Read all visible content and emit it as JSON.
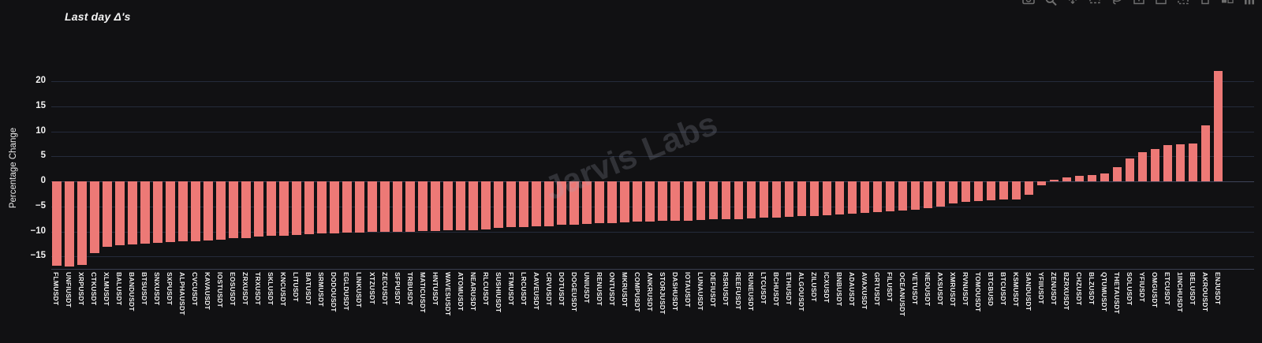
{
  "page": {
    "background": "#111113"
  },
  "watermark": "Jarvis Labs",
  "toolbar": {
    "icons": [
      "camera-icon",
      "zoom-icon",
      "pan-icon",
      "box-select-icon",
      "lasso-icon",
      "zoom-in-icon",
      "zoom-out-icon",
      "autoscale-icon",
      "reset-axes-icon",
      "toggle-hover-icon",
      "plotly-logo-icon"
    ]
  },
  "chart_data": {
    "type": "bar",
    "title": "Last day Δ's",
    "xlabel": "",
    "ylabel": "Percentage Change",
    "bar_color": "#ed7976",
    "grid": true,
    "ylim": [
      -17.6,
      23.0
    ],
    "ytick_labels": [
      "20",
      "15",
      "10",
      "5",
      "0",
      "−5",
      "−10",
      "−15"
    ],
    "ytick_values": [
      20,
      15,
      10,
      5,
      0,
      -5,
      -10,
      -15
    ],
    "categories": [
      "FLMUSDT",
      "UNFIUSDT",
      "XRPUSDT",
      "CTKUSDT",
      "XLMUSDT",
      "BALUSDT",
      "BANDUSDT",
      "BTSUSDT",
      "SNXUSDT",
      "SXPUSDT",
      "ALPHAUSDT",
      "CVCUSDT",
      "KAVAUSDT",
      "IOSTUSDT",
      "EOSUSDT",
      "ZRXUSDT",
      "TRXUSDT",
      "SKLUSDT",
      "KNCUSDT",
      "LITUSDT",
      "BATUSDT",
      "SRMUSDT",
      "DODOUSDT",
      "EGLDUSDT",
      "LINKUSDT",
      "XTZUSDT",
      "ZECUSDT",
      "SFPUSDT",
      "TRBUSDT",
      "MATICUSDT",
      "HNTUSDT",
      "WAVESUSDT",
      "ATOMUSDT",
      "NEARUSDT",
      "RLCUSDT",
      "SUSHIUSDT",
      "FTMUSDT",
      "LRCUSDT",
      "AAVEUSDT",
      "CRVUSDT",
      "DOTUSDT",
      "DOGEUSDT",
      "UNIUSDT",
      "RENUSDT",
      "ONTUSDT",
      "MKRUSDT",
      "COMPUSDT",
      "ANKRUSDT",
      "STORJUSDT",
      "DASHUSDT",
      "IOTAUSDT",
      "LUNAUSDT",
      "DEFIUSDT",
      "RSRUSDT",
      "REEFUSDT",
      "RUNEUSDT",
      "LTCUSDT",
      "BCHUSDT",
      "ETHUSDT",
      "ALGOUSDT",
      "ZILUSDT",
      "ICXUSDT",
      "BNBUSDT",
      "ADAUSDT",
      "AVAXUSDT",
      "GRTUSDT",
      "FILUSDT",
      "OCEANUSDT",
      "VETUSDT",
      "NEOUSDT",
      "AXSUSDT",
      "XMRUSDT",
      "RVNUSDT",
      "TOMOUSDT",
      "BTCBUSD",
      "BTCUSDT",
      "KSMUSDT",
      "SANDUSDT",
      "YFIIUSDT",
      "ZENUSDT",
      "BZRXUSDT",
      "CHZUSDT",
      "BLZUSDT",
      "QTUMUSDT",
      "THETAUSDT",
      "SOLUSDT",
      "YFIUSDT",
      "OMGUSDT",
      "ETCUSDT",
      "1INCHUSDT",
      "BELUSDT",
      "AKROUSDT",
      "ENJUSDT"
    ],
    "values": [
      -16.8,
      -17.0,
      -16.7,
      -14.3,
      -13.0,
      -12.8,
      -12.6,
      -12.4,
      -12.3,
      -12.2,
      -12.0,
      -11.9,
      -11.8,
      -11.6,
      -11.4,
      -11.3,
      -11.0,
      -10.9,
      -10.8,
      -10.7,
      -10.5,
      -10.4,
      -10.4,
      -10.3,
      -10.2,
      -10.1,
      -10.1,
      -10.0,
      -10.0,
      -9.9,
      -9.9,
      -9.8,
      -9.8,
      -9.7,
      -9.6,
      -9.3,
      -9.2,
      -9.1,
      -9.0,
      -8.9,
      -8.7,
      -8.6,
      -8.5,
      -8.4,
      -8.3,
      -8.2,
      -8.1,
      -8.0,
      -7.9,
      -7.9,
      -7.8,
      -7.7,
      -7.6,
      -7.5,
      -7.5,
      -7.4,
      -7.3,
      -7.2,
      -7.1,
      -7.0,
      -6.9,
      -6.8,
      -6.6,
      -6.5,
      -6.3,
      -6.1,
      -6.0,
      -5.8,
      -5.6,
      -5.3,
      -5.0,
      -4.4,
      -4.1,
      -3.9,
      -3.8,
      -3.7,
      -3.7,
      -2.6,
      -0.8,
      0.3,
      0.8,
      1.1,
      1.3,
      1.6,
      2.8,
      4.6,
      5.9,
      6.5,
      7.2,
      7.4,
      7.6,
      11.2,
      22.1
    ]
  }
}
